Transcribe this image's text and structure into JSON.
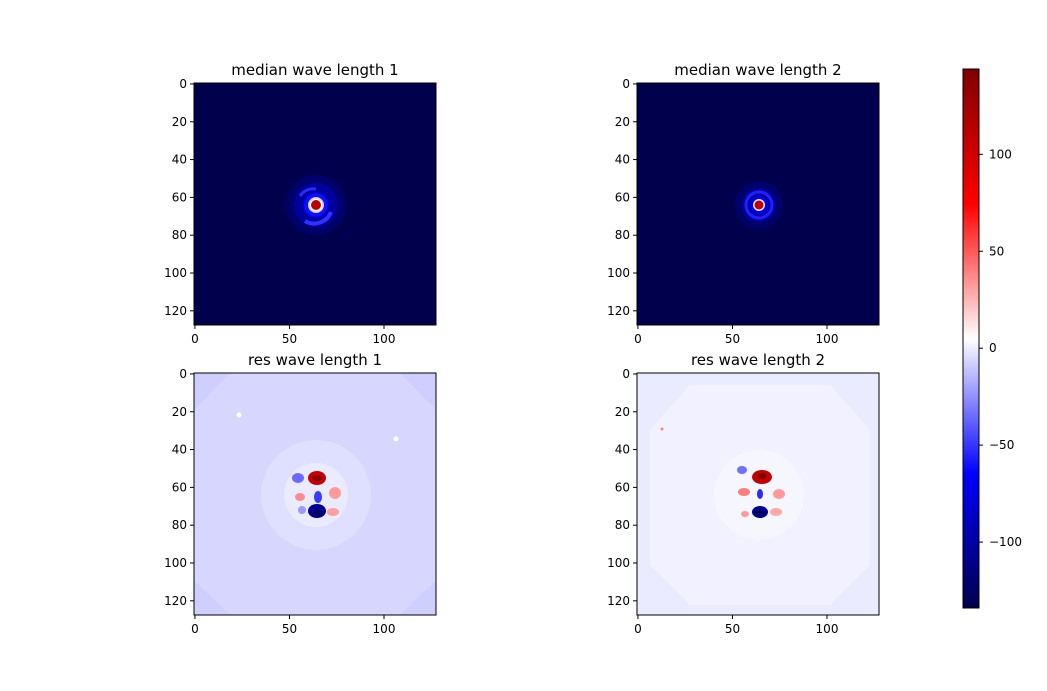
{
  "colormap": {
    "name": "seismic",
    "stops": [
      "#00004c",
      "#0000ff",
      "#ffffff",
      "#ff0000",
      "#7f0000"
    ]
  },
  "chart_data": [
    {
      "type": "heatmap",
      "title": "median wave length 1",
      "xticks": [
        "0",
        "50",
        "100"
      ],
      "yticks": [
        "0",
        "20",
        "40",
        "60",
        "80",
        "100",
        "120"
      ],
      "xlim": [
        0,
        127
      ],
      "ylim": [
        127,
        0
      ],
      "data_shape": [
        128,
        128
      ],
      "background_value": -134,
      "core_center": [
        64,
        64
      ],
      "core_peak_value": 140,
      "core_radius": 3
    },
    {
      "type": "heatmap",
      "title": "median wave length 2",
      "xticks": [
        "0",
        "50",
        "100"
      ],
      "yticks": [
        "0",
        "20",
        "40",
        "60",
        "80",
        "100",
        "120"
      ],
      "xlim": [
        0,
        127
      ],
      "ylim": [
        127,
        0
      ],
      "data_shape": [
        128,
        128
      ],
      "background_value": -134,
      "core_center": [
        64,
        64
      ],
      "core_peak_value": 140,
      "core_radius": 3
    },
    {
      "type": "heatmap",
      "title": "res wave length 1",
      "xticks": [
        "0",
        "50",
        "100"
      ],
      "yticks": [
        "0",
        "20",
        "40",
        "60",
        "80",
        "100",
        "120"
      ],
      "xlim": [
        0,
        127
      ],
      "ylim": [
        127,
        0
      ],
      "data_shape": [
        128,
        128
      ],
      "background_value": -25,
      "features": [
        {
          "x": 65,
          "y": 55,
          "value": 130
        },
        {
          "x": 65,
          "y": 73,
          "value": -130
        }
      ]
    },
    {
      "type": "heatmap",
      "title": "res wave length 2",
      "xticks": [
        "0",
        "50",
        "100"
      ],
      "yticks": [
        "0",
        "20",
        "40",
        "60",
        "80",
        "100",
        "120"
      ],
      "xlim": [
        0,
        127
      ],
      "ylim": [
        127,
        0
      ],
      "data_shape": [
        128,
        128
      ],
      "background_value": -10,
      "features": [
        {
          "x": 67,
          "y": 54,
          "value": 130
        },
        {
          "x": 66,
          "y": 74,
          "value": -130
        }
      ]
    }
  ],
  "colorbar": {
    "vmin": -134,
    "vmax": 144,
    "ticks": [
      {
        "value": 100,
        "label": "100"
      },
      {
        "value": 50,
        "label": "50"
      },
      {
        "value": 0,
        "label": "0"
      },
      {
        "value": -50,
        "label": "−50"
      },
      {
        "value": -100,
        "label": "−100"
      }
    ]
  }
}
